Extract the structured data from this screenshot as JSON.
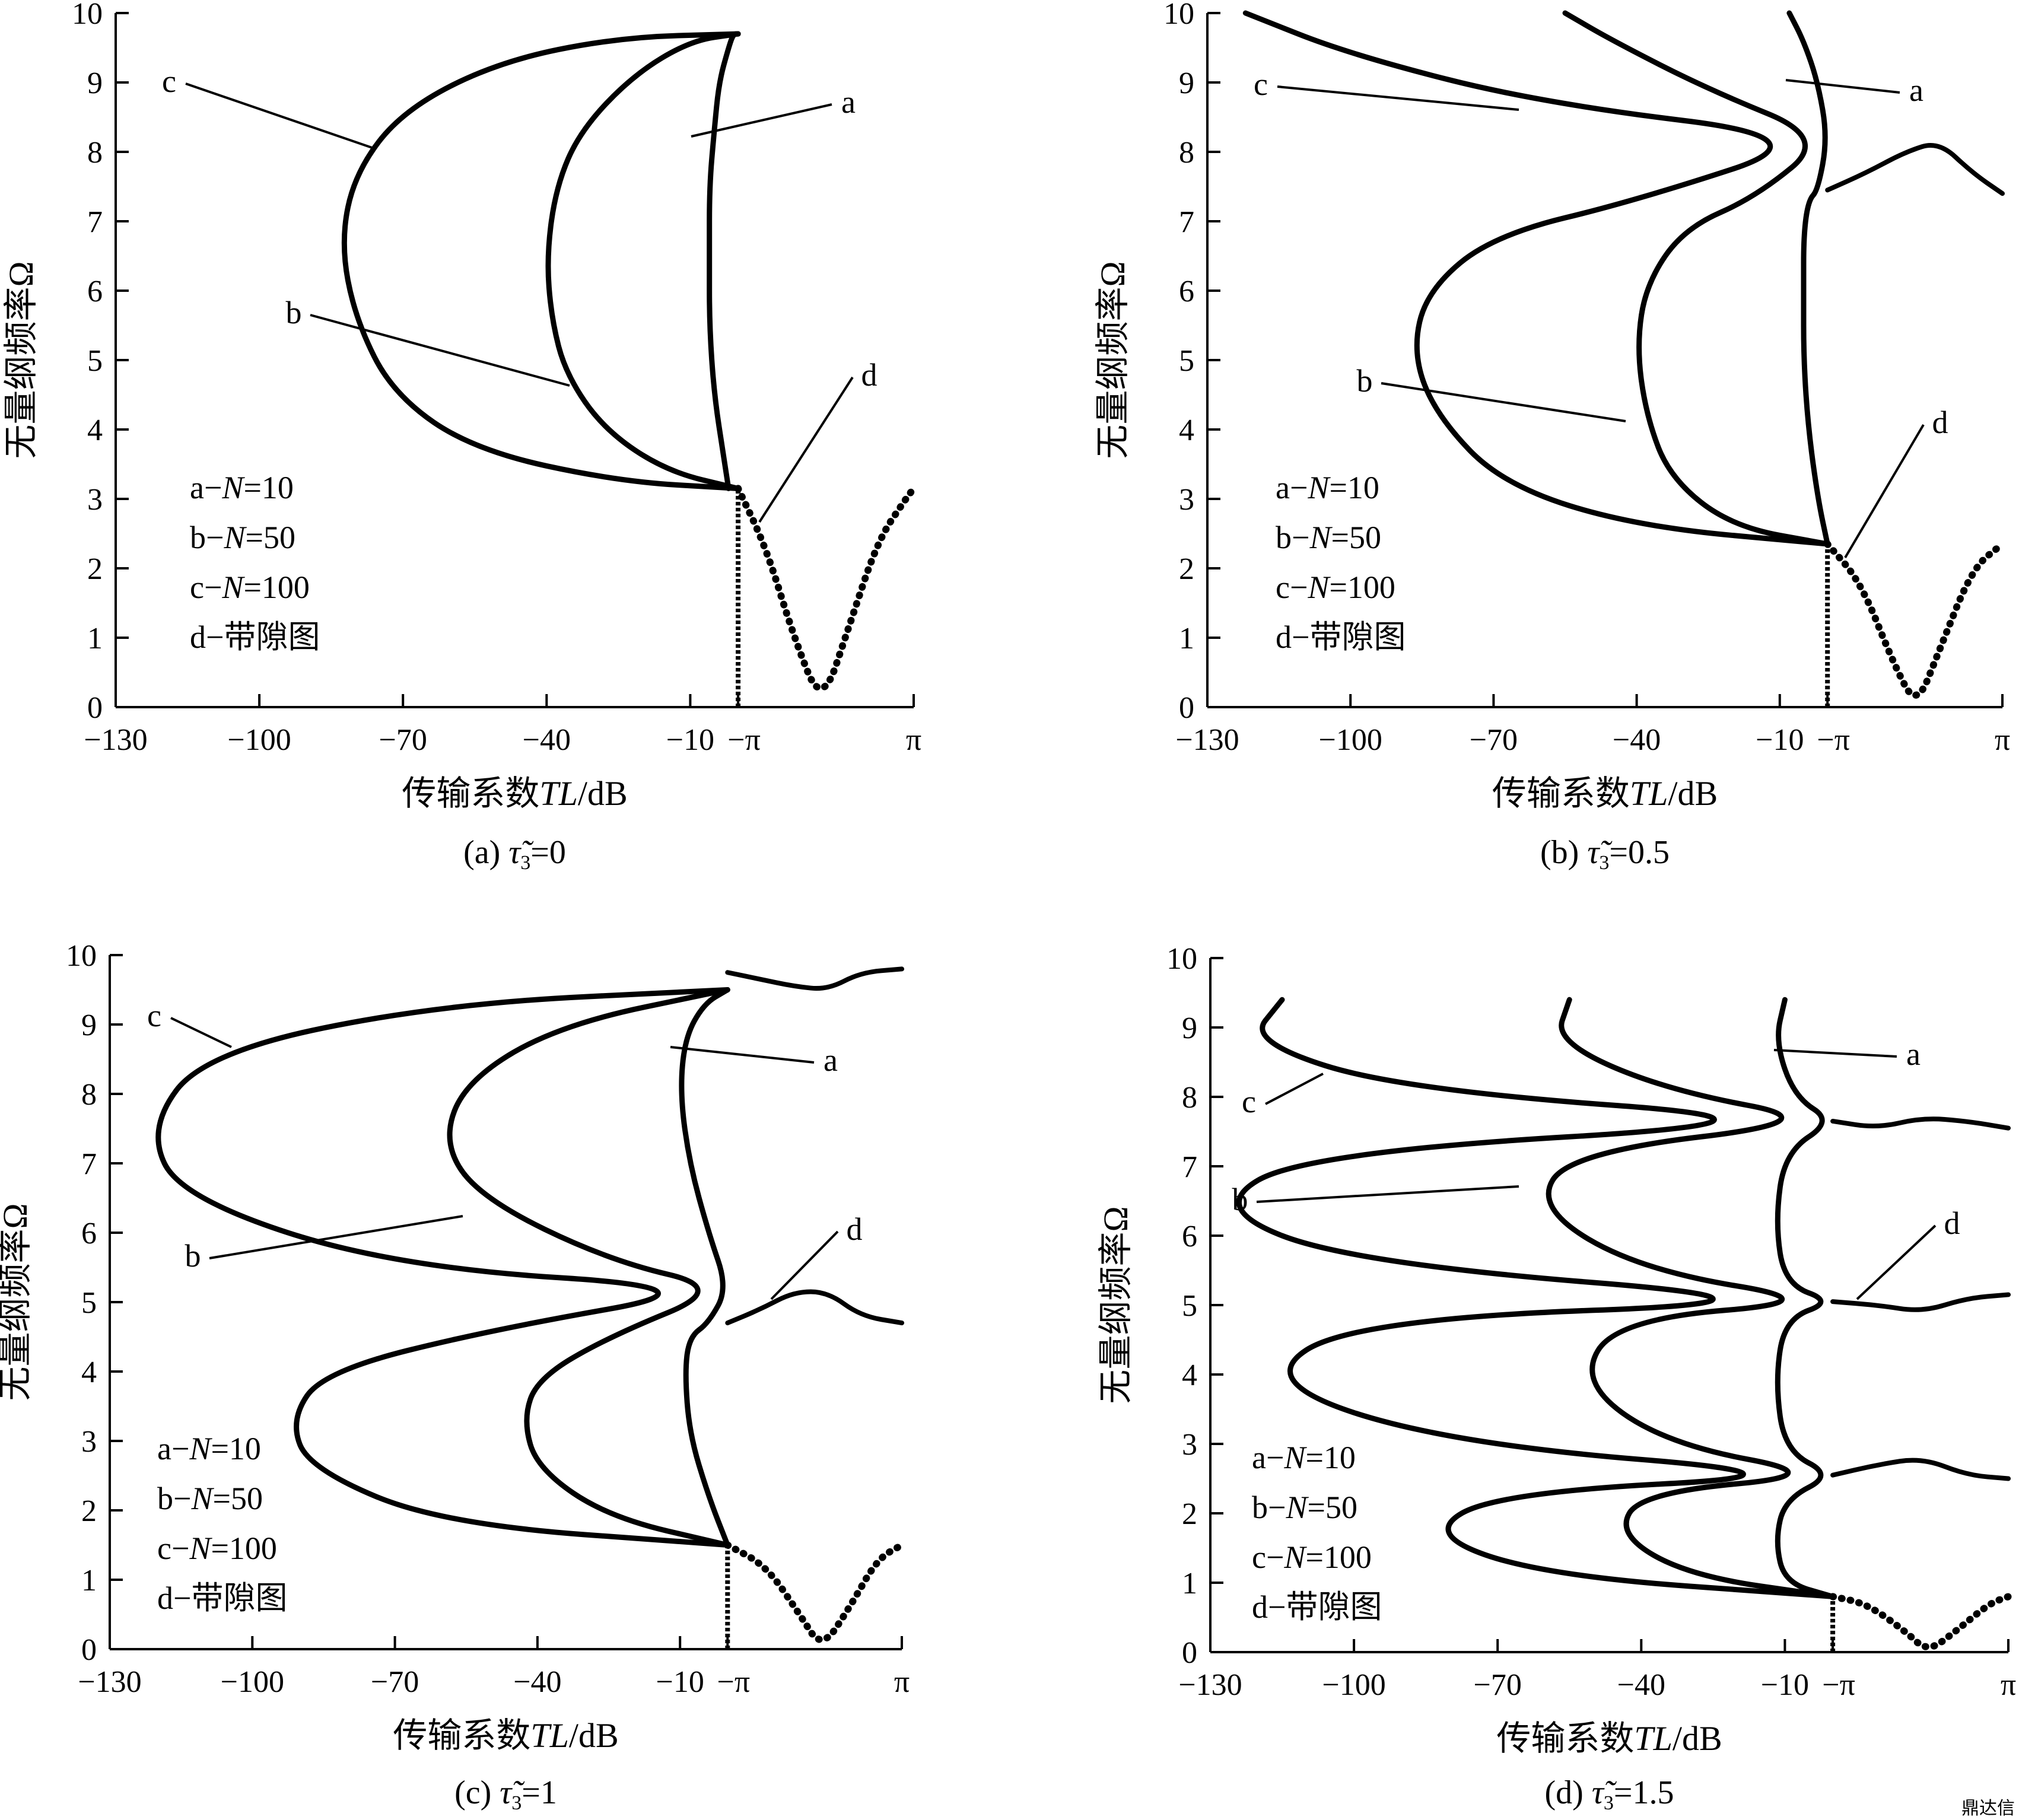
{
  "watermark": "鼎达信",
  "chart_data": [
    {
      "type": "line",
      "panel": "a",
      "caption_prefix": "(a)",
      "caption_value": "=0",
      "ylabel": "无量纲频率Ω",
      "xlabel_prefix": "传输系数",
      "xlabel_var": "TL",
      "xlabel_unit": "/dB",
      "xticks": [
        "−130",
        "−100",
        "−70",
        "−40",
        "−10",
        "−π",
        "π"
      ],
      "yticks": [
        "0",
        "1",
        "2",
        "3",
        "4",
        "5",
        "6",
        "7",
        "8",
        "9",
        "10"
      ],
      "ylim": [
        0,
        10
      ],
      "xlim_TL": [
        -130,
        0
      ],
      "x_wavenumber": [
        "−π",
        "π"
      ],
      "legend": [
        "a−N=10",
        "b−N=50",
        "c−N=100",
        "d−带隙图"
      ],
      "curve_labels": [
        "a",
        "b",
        "c",
        "d"
      ],
      "series": [
        {
          "name": "a",
          "x": [
            -2,
            -3,
            -5,
            -6,
            -6,
            -6,
            -5,
            -4,
            -2,
            -1,
            0
          ],
          "y": [
            3.15,
            3.6,
            4.5,
            5.5,
            6.5,
            7.5,
            8.3,
            9.0,
            9.5,
            9.7,
            9.7
          ]
        },
        {
          "name": "b",
          "x": [
            0,
            -15,
            -28,
            -36,
            -39,
            -40,
            -38,
            -33,
            -22,
            -10,
            0
          ],
          "y": [
            3.15,
            3.4,
            4.0,
            4.8,
            5.6,
            6.5,
            7.5,
            8.3,
            9.1,
            9.6,
            9.7
          ]
        },
        {
          "name": "c",
          "x": [
            0,
            -25,
            -55,
            -72,
            -80,
            -83,
            -80,
            -70,
            -50,
            -25,
            0
          ],
          "y": [
            3.15,
            3.25,
            3.7,
            4.5,
            5.6,
            6.7,
            7.7,
            8.6,
            9.3,
            9.65,
            9.7
          ]
        },
        {
          "name": "d",
          "x": [
            0,
            0.5,
            1,
            1.5,
            2,
            2.5,
            3,
            3.142
          ],
          "y": [
            3.15,
            2.3,
            1.0,
            0.0,
            1.2,
            2.4,
            3.0,
            3.15
          ]
        }
      ]
    },
    {
      "type": "line",
      "panel": "b",
      "caption_prefix": "(b)",
      "caption_value": "=0.5",
      "ylabel": "无量纲频率Ω",
      "xlabel_prefix": "传输系数",
      "xlabel_var": "TL",
      "xlabel_unit": "/dB",
      "xticks": [
        "−130",
        "−100",
        "−70",
        "−40",
        "−10",
        "−π",
        "π"
      ],
      "yticks": [
        "0",
        "1",
        "2",
        "3",
        "4",
        "5",
        "6",
        "7",
        "8",
        "9",
        "10"
      ],
      "ylim": [
        0,
        10
      ],
      "xlim_TL": [
        -130,
        0
      ],
      "x_wavenumber": [
        "−π",
        "π"
      ],
      "legend": [
        "a−N=10",
        "b−N=50",
        "c−N=100",
        "d−带隙图"
      ],
      "curve_labels": [
        "a",
        "b",
        "c",
        "d"
      ],
      "series": [
        {
          "name": "a",
          "x": [
            0,
            -2,
            -4,
            -5,
            -5,
            -5,
            -4,
            -2,
            0,
            -2,
            -5,
            -8
          ],
          "y": [
            2.35,
            3.0,
            4.0,
            5.0,
            6.0,
            6.8,
            7.3,
            7.45,
            8.2,
            9.0,
            9.6,
            10
          ]
        },
        {
          "name": "b",
          "x": [
            0,
            -20,
            -33,
            -38,
            -40,
            -38,
            -30,
            -15,
            0,
            -25,
            -45,
            -55
          ],
          "y": [
            2.35,
            2.6,
            3.3,
            4.2,
            5.2,
            6.1,
            6.9,
            7.35,
            8.2,
            8.9,
            9.6,
            10
          ]
        },
        {
          "name": "c",
          "x": [
            0,
            -40,
            -68,
            -82,
            -87,
            -84,
            -70,
            -40,
            0,
            -60,
            -100,
            -122
          ],
          "y": [
            2.35,
            2.6,
            3.2,
            4.2,
            5.1,
            6.0,
            6.8,
            7.3,
            8.2,
            8.7,
            9.4,
            10
          ]
        },
        {
          "name": "d",
          "x": [
            0,
            0.6,
            1.2,
            1.6,
            2.0,
            2.6,
            3.142
          ],
          "y": [
            2.35,
            1.8,
            0.6,
            0.0,
            0.8,
            2.0,
            2.35
          ]
        },
        {
          "name": "d-upper",
          "x": [
            0,
            0.7,
            1.4,
            2.0,
            2.6,
            3.142
          ],
          "y": [
            7.45,
            7.7,
            8.0,
            8.15,
            7.7,
            7.4
          ]
        }
      ]
    },
    {
      "type": "line",
      "panel": "c",
      "caption_prefix": "(c)",
      "caption_value": "=1",
      "ylabel": "无量纲频率Ω",
      "xlabel_prefix": "传输系数",
      "xlabel_var": "TL",
      "xlabel_unit": "/dB",
      "xticks": [
        "−130",
        "−100",
        "−70",
        "−40",
        "−10",
        "−π",
        "π"
      ],
      "yticks": [
        "0",
        "1",
        "2",
        "3",
        "4",
        "5",
        "6",
        "7",
        "8",
        "9",
        "10"
      ],
      "ylim": [
        0,
        10
      ],
      "xlim_TL": [
        -130,
        0
      ],
      "x_wavenumber": [
        "−π",
        "π"
      ],
      "legend": [
        "a−N=10",
        "b−N=50",
        "c−N=100",
        "d−带隙图"
      ],
      "curve_labels": [
        "a",
        "b",
        "c",
        "d"
      ],
      "series": [
        {
          "name": "a",
          "x": [
            0,
            -4,
            -8,
            -9,
            -8,
            -4,
            0,
            -4,
            -8,
            -10,
            -9,
            -5,
            0
          ],
          "y": [
            1.5,
            2.2,
            3.1,
            4.0,
            4.5,
            4.7,
            5.2,
            6.0,
            7.0,
            8.0,
            8.8,
            9.3,
            9.5
          ]
        },
        {
          "name": "b",
          "x": [
            0,
            -25,
            -40,
            -43,
            -40,
            -25,
            0,
            -25,
            -52,
            -60,
            -55,
            -35,
            0
          ],
          "y": [
            1.5,
            1.9,
            2.6,
            3.3,
            3.9,
            4.5,
            5.2,
            5.6,
            6.5,
            7.3,
            8.2,
            9.0,
            9.5
          ]
        },
        {
          "name": "c",
          "x": [
            0,
            -60,
            -88,
            -92,
            -85,
            -50,
            0,
            -70,
            -115,
            -122,
            -110,
            -60,
            0
          ],
          "y": [
            1.5,
            1.8,
            2.6,
            3.3,
            4.0,
            4.6,
            5.2,
            5.5,
            6.5,
            7.5,
            8.6,
            9.3,
            9.5
          ]
        },
        {
          "name": "d",
          "x": [
            0,
            0.7,
            1.3,
            1.7,
            2.2,
            2.7,
            3.142
          ],
          "y": [
            1.5,
            1.2,
            0.5,
            0.0,
            0.6,
            1.3,
            1.5
          ]
        },
        {
          "name": "d-mid",
          "x": [
            0,
            0.6,
            1.2,
            1.8,
            2.4,
            3.142
          ],
          "y": [
            4.7,
            4.9,
            5.15,
            5.15,
            4.8,
            4.7
          ]
        },
        {
          "name": "d-upper",
          "x": [
            0,
            0.6,
            1.2,
            1.8,
            2.4,
            3.142
          ],
          "y": [
            9.75,
            9.65,
            9.55,
            9.5,
            9.75,
            9.8
          ]
        }
      ]
    },
    {
      "type": "line",
      "panel": "d",
      "caption_prefix": "(d)",
      "caption_value": "=1.5",
      "ylabel": "无量纲频率Ω",
      "xlabel_prefix": "传输系数",
      "xlabel_var": "TL",
      "xlabel_unit": "/dB",
      "xticks": [
        "−130",
        "−100",
        "−70",
        "−40",
        "−10",
        "−π",
        "π"
      ],
      "yticks": [
        "0",
        "1",
        "2",
        "3",
        "4",
        "5",
        "6",
        "7",
        "8",
        "9",
        "10"
      ],
      "ylim": [
        0,
        10
      ],
      "xlim_TL": [
        -130,
        0
      ],
      "x_wavenumber": [
        "−π",
        "π"
      ],
      "legend": [
        "a−N=10",
        "b−N=50",
        "c−N=100",
        "d−带隙图"
      ],
      "curve_labels": [
        "a",
        "b",
        "c",
        "d"
      ],
      "series": [
        {
          "name": "a",
          "x": [
            0,
            -10,
            -12,
            -10,
            0,
            -10,
            -12,
            -10,
            0,
            -10,
            -12,
            -10,
            0,
            -8,
            -12,
            -10
          ],
          "y": [
            0.8,
            1.0,
            1.6,
            2.2,
            2.55,
            2.9,
            3.9,
            4.8,
            5.05,
            5.3,
            6.2,
            7.2,
            7.65,
            8.0,
            8.8,
            9.4
          ]
        },
        {
          "name": "b",
          "x": [
            0,
            -30,
            -45,
            -40,
            0,
            -35,
            -53,
            -45,
            0,
            -40,
            -62,
            -55,
            0,
            -35,
            -58,
            -55
          ],
          "y": [
            0.8,
            1.1,
            1.7,
            2.3,
            2.55,
            3.0,
            3.9,
            4.8,
            5.05,
            5.5,
            6.4,
            7.2,
            7.65,
            8.1,
            8.8,
            9.4
          ]
        },
        {
          "name": "c",
          "x": [
            0,
            -60,
            -85,
            -70,
            0,
            -80,
            -120,
            -100,
            0,
            -100,
            -130,
            -110,
            0,
            -90,
            -122,
            -115
          ],
          "y": [
            0.8,
            1.1,
            1.7,
            2.3,
            2.55,
            3.0,
            3.9,
            4.8,
            5.05,
            5.6,
            6.4,
            7.2,
            7.65,
            8.1,
            8.8,
            9.4
          ]
        },
        {
          "name": "d",
          "x": [
            0,
            0.6,
            1.3,
            1.7,
            2.2,
            2.8,
            3.142
          ],
          "y": [
            0.8,
            0.7,
            0.3,
            0.0,
            0.3,
            0.7,
            0.8
          ]
        },
        {
          "name": "d-2",
          "x": [
            0,
            0.8,
            1.6,
            2.4,
            3.142
          ],
          "y": [
            2.55,
            2.7,
            2.8,
            2.55,
            2.5
          ]
        },
        {
          "name": "d-3",
          "x": [
            0,
            0.8,
            1.6,
            2.4,
            3.142
          ],
          "y": [
            5.05,
            5.0,
            4.9,
            5.1,
            5.15
          ]
        },
        {
          "name": "d-4",
          "x": [
            0,
            0.8,
            1.6,
            2.4,
            3.142
          ],
          "y": [
            7.65,
            7.55,
            7.7,
            7.65,
            7.55
          ]
        }
      ]
    }
  ]
}
